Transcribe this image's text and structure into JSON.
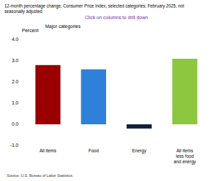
{
  "chart_data": {
    "type": "bar",
    "title": [
      "12-month percentage change, Consumer Price Index, selected categories, February 2025, not",
      "seasonally adjusted"
    ],
    "subtitle": "Click on columns to drill down",
    "y_label": "Percent",
    "annotations": [
      {
        "text": "Major categories"
      }
    ],
    "source": "Source: U.S. Bureau of Labor Statistics.",
    "categories": [
      "All items",
      "Food",
      "Energy",
      "All items less food and energy"
    ],
    "values": [
      2.8,
      2.6,
      -0.2,
      3.1
    ],
    "colors": [
      "#9b0000",
      "#2f80d8",
      "#0f2238",
      "#8dc63f"
    ],
    "ylim": [
      -1,
      4
    ],
    "yticks": [
      {
        "value": -1,
        "label": "-1.0"
      },
      {
        "value": 0,
        "label": "0.0"
      },
      {
        "value": 1,
        "label": "1.0"
      },
      {
        "value": 2,
        "label": "2.0"
      },
      {
        "value": 3,
        "label": "3.0"
      },
      {
        "value": 4,
        "label": "4.0"
      }
    ],
    "grid": false
  }
}
